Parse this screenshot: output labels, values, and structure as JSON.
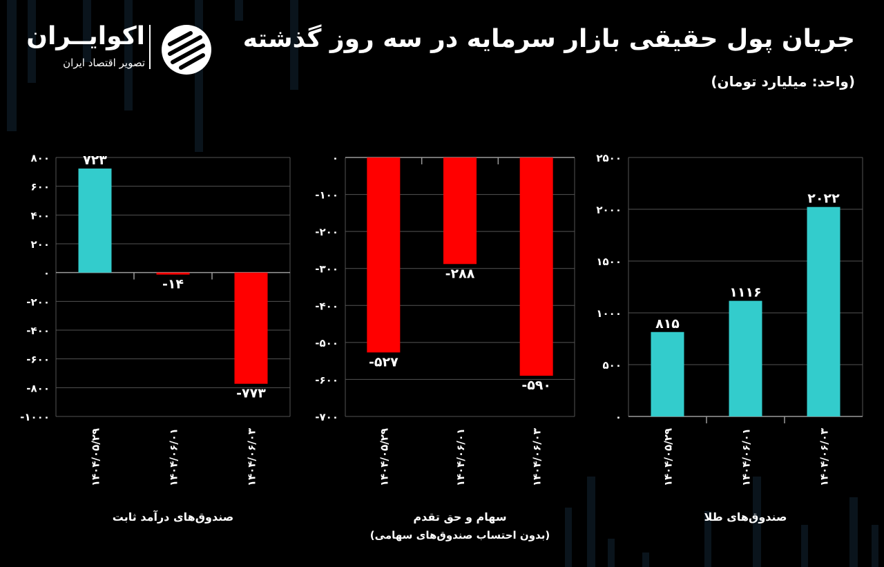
{
  "header": {
    "title": "جریان پول حقیقی بازار سرمایه در سه روز گذشته",
    "subtitle": "(واحد: میلیارد تومان)"
  },
  "logo": {
    "name": "اکوایــران",
    "tagline": "تصویر اقتصاد ایران"
  },
  "colors": {
    "positive": "#33CCCC",
    "negative": "#FF0000",
    "background": "#000000",
    "grid": "#555555"
  },
  "chart_data": [
    {
      "type": "bar",
      "categories": [
        "۱۴۰۴/۰۵/۲۹",
        "۱۴۰۴/۰۶/۰۱",
        "۱۴۰۴/۰۶/۰۳"
      ],
      "values": [
        723,
        -14,
        -773
      ],
      "value_labels": [
        "۷۲۳",
        "-۱۴",
        "-۷۷۳"
      ],
      "ylim": [
        -1000,
        800
      ],
      "yticks": [
        800,
        600,
        400,
        200,
        0,
        -200,
        -400,
        -600,
        -800,
        -1000
      ],
      "ytick_labels": [
        "۸۰۰",
        "۶۰۰",
        "۴۰۰",
        "۲۰۰",
        "۰",
        "-۲۰۰",
        "-۴۰۰",
        "-۶۰۰",
        "-۸۰۰",
        "-۱۰۰۰"
      ],
      "xlabel": "صندوق‌های درآمد ثابت",
      "xlabel2": "",
      "grid": true
    },
    {
      "type": "bar",
      "categories": [
        "۱۴۰۴/۰۵/۲۹",
        "۱۴۰۴/۰۶/۰۱",
        "۱۴۰۴/۰۶/۰۳"
      ],
      "values": [
        -527,
        -288,
        -590
      ],
      "value_labels": [
        "-۵۲۷",
        "-۲۸۸",
        "-۵۹۰"
      ],
      "ylim": [
        -700,
        0
      ],
      "yticks": [
        0,
        -100,
        -200,
        -300,
        -400,
        -500,
        -600,
        -700
      ],
      "ytick_labels": [
        "۰",
        "-۱۰۰",
        "-۲۰۰",
        "-۳۰۰",
        "-۴۰۰",
        "-۵۰۰",
        "-۶۰۰",
        "-۷۰۰"
      ],
      "xlabel": "سهام و حق تقدم",
      "xlabel2": "(بدون احتساب صندوق‌های سهامی)",
      "grid": true
    },
    {
      "type": "bar",
      "categories": [
        "۱۴۰۴/۰۵/۲۹",
        "۱۴۰۴/۰۶/۰۱",
        "۱۴۰۴/۰۶/۰۳"
      ],
      "values": [
        815,
        1116,
        2022
      ],
      "value_labels": [
        "۸۱۵",
        "۱۱۱۶",
        "۲۰۲۲"
      ],
      "ylim": [
        0,
        2500
      ],
      "yticks": [
        2500,
        2000,
        1500,
        1000,
        500,
        0
      ],
      "ytick_labels": [
        "۲۵۰۰",
        "۲۰۰۰",
        "۱۵۰۰",
        "۱۰۰۰",
        "۵۰۰",
        "۰"
      ],
      "xlabel": "صندوق‌های طلا",
      "xlabel2": "",
      "grid": true
    }
  ]
}
